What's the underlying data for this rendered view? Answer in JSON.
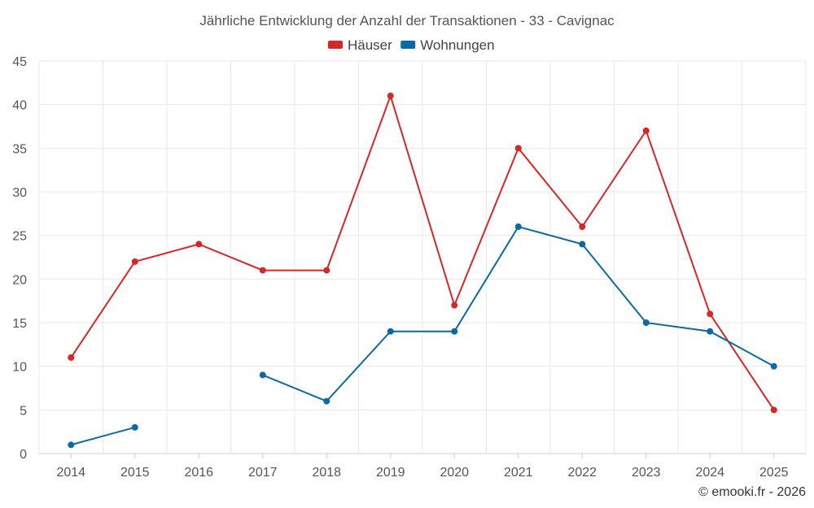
{
  "chart_data": {
    "type": "line",
    "title": "Jährliche Entwicklung der Anzahl der Transaktionen - 33 - Cavignac",
    "categories": [
      "2014",
      "2015",
      "2016",
      "2017",
      "2018",
      "2019",
      "2020",
      "2021",
      "2022",
      "2023",
      "2024",
      "2025"
    ],
    "ylim": [
      0,
      45
    ],
    "yticks": [
      0,
      5,
      10,
      15,
      20,
      25,
      30,
      35,
      40,
      45
    ],
    "grid": true,
    "legend_position": "top-center",
    "series": [
      {
        "name": "Häuser",
        "color": "#d62728",
        "values": [
          11,
          22,
          24,
          21,
          21,
          41,
          17,
          35,
          26,
          37,
          16,
          5
        ]
      },
      {
        "name": "Wohnungen",
        "color": "#0b6aa2",
        "values": [
          1,
          3,
          null,
          9,
          6,
          14,
          14,
          26,
          24,
          15,
          14,
          10
        ]
      }
    ]
  },
  "credit": "© emooki.fr - 2026"
}
